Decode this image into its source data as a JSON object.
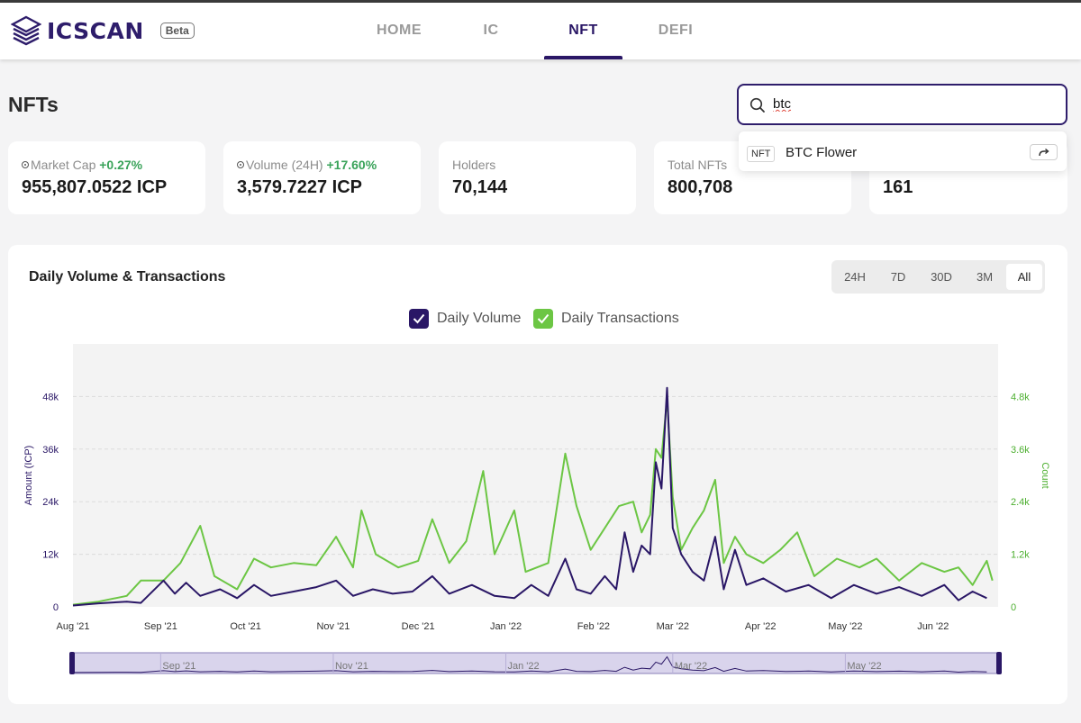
{
  "app": {
    "logo_text": "ICSCAN",
    "badge": "Beta",
    "nav": [
      {
        "label": "HOME",
        "active": false
      },
      {
        "label": "IC",
        "active": false
      },
      {
        "label": "NFT",
        "active": true
      },
      {
        "label": "DEFI",
        "active": false
      }
    ]
  },
  "page": {
    "title": "NFTs"
  },
  "search": {
    "value": "btc",
    "results": [
      {
        "tag": "NFT",
        "name": "BTC Flower"
      }
    ]
  },
  "stats": [
    {
      "label": "Market Cap",
      "change": "+0.27%",
      "value": "955,807.0522 ICP",
      "info": true
    },
    {
      "label": "Volume (24H)",
      "change": "+17.60%",
      "value": "3,579.7227 ICP",
      "info": true
    },
    {
      "label": "Holders",
      "change": "",
      "value": "70,144",
      "info": false
    },
    {
      "label": "Total NFTs",
      "change": "",
      "value": "800,708",
      "info": false
    },
    {
      "label": "",
      "change": "",
      "value": "161",
      "info": false
    }
  ],
  "chart_panel": {
    "title": "Daily Volume & Transactions",
    "ranges": [
      {
        "label": "24H",
        "active": false
      },
      {
        "label": "7D",
        "active": false
      },
      {
        "label": "30D",
        "active": false
      },
      {
        "label": "3M",
        "active": false
      },
      {
        "label": "All",
        "active": true
      }
    ],
    "legend": [
      {
        "label": "Daily Volume",
        "color": "#2a1766"
      },
      {
        "label": "Daily Transactions",
        "color": "#6cc644"
      }
    ]
  },
  "chart_data": {
    "type": "line",
    "x_labels": [
      "Aug '21",
      "Sep '21",
      "Oct '21",
      "Nov '21",
      "Dec '21",
      "Jan '22",
      "Feb '22",
      "Mar '22",
      "Apr '22",
      "May '22",
      "Jun '22"
    ],
    "y_left": {
      "label": "Amount (ICP)",
      "ticks": [
        "0",
        "12k",
        "24k",
        "36k",
        "48k"
      ],
      "max": 60000
    },
    "y_right": {
      "label": "Count",
      "ticks": [
        "0",
        "1.2k",
        "2.4k",
        "3.6k",
        "4.8k"
      ],
      "max": 6000
    },
    "navigator_labels": [
      "Sep '21",
      "Nov '21",
      "Jan '22",
      "Mar '22",
      "May '22"
    ],
    "series": [
      {
        "name": "Daily Volume",
        "axis": "left",
        "color": "#2a1766",
        "points": [
          [
            "2021-08-01",
            300
          ],
          [
            "2021-08-10",
            800
          ],
          [
            "2021-08-20",
            1200
          ],
          [
            "2021-08-25",
            900
          ],
          [
            "2021-09-02",
            6000
          ],
          [
            "2021-09-06",
            3000
          ],
          [
            "2021-09-10",
            5500
          ],
          [
            "2021-09-15",
            2500
          ],
          [
            "2021-09-22",
            4000
          ],
          [
            "2021-09-28",
            2000
          ],
          [
            "2021-10-04",
            5000
          ],
          [
            "2021-10-10",
            2500
          ],
          [
            "2021-10-18",
            3500
          ],
          [
            "2021-10-26",
            4500
          ],
          [
            "2021-11-02",
            6000
          ],
          [
            "2021-11-08",
            2500
          ],
          [
            "2021-11-15",
            4000
          ],
          [
            "2021-11-22",
            3000
          ],
          [
            "2021-11-29",
            3500
          ],
          [
            "2021-12-06",
            7000
          ],
          [
            "2021-12-12",
            3000
          ],
          [
            "2021-12-20",
            5000
          ],
          [
            "2021-12-28",
            2500
          ],
          [
            "2022-01-04",
            2000
          ],
          [
            "2022-01-10",
            5000
          ],
          [
            "2022-01-16",
            2500
          ],
          [
            "2022-01-22",
            11000
          ],
          [
            "2022-01-26",
            4000
          ],
          [
            "2022-01-31",
            3000
          ],
          [
            "2022-02-05",
            7000
          ],
          [
            "2022-02-09",
            4000
          ],
          [
            "2022-02-12",
            17000
          ],
          [
            "2022-02-15",
            8000
          ],
          [
            "2022-02-18",
            14000
          ],
          [
            "2022-02-21",
            12000
          ],
          [
            "2022-02-23",
            33000
          ],
          [
            "2022-02-25",
            27000
          ],
          [
            "2022-02-27",
            50000
          ],
          [
            "2022-03-01",
            18000
          ],
          [
            "2022-03-04",
            12000
          ],
          [
            "2022-03-08",
            8000
          ],
          [
            "2022-03-12",
            6000
          ],
          [
            "2022-03-16",
            16000
          ],
          [
            "2022-03-19",
            4000
          ],
          [
            "2022-03-23",
            13000
          ],
          [
            "2022-03-27",
            5000
          ],
          [
            "2022-04-02",
            6500
          ],
          [
            "2022-04-10",
            3500
          ],
          [
            "2022-04-18",
            5000
          ],
          [
            "2022-04-26",
            2000
          ],
          [
            "2022-05-04",
            5000
          ],
          [
            "2022-05-12",
            3000
          ],
          [
            "2022-05-20",
            4500
          ],
          [
            "2022-05-28",
            2500
          ],
          [
            "2022-06-05",
            5000
          ],
          [
            "2022-06-10",
            1500
          ],
          [
            "2022-06-15",
            3500
          ],
          [
            "2022-06-20",
            2000
          ]
        ]
      },
      {
        "name": "Daily Transactions",
        "axis": "right",
        "color": "#6cc644",
        "points": [
          [
            "2021-08-01",
            50
          ],
          [
            "2021-08-10",
            120
          ],
          [
            "2021-08-20",
            250
          ],
          [
            "2021-08-25",
            600
          ],
          [
            "2021-09-02",
            600
          ],
          [
            "2021-09-08",
            1000
          ],
          [
            "2021-09-15",
            1850
          ],
          [
            "2021-09-20",
            700
          ],
          [
            "2021-09-28",
            400
          ],
          [
            "2021-10-04",
            1100
          ],
          [
            "2021-10-10",
            900
          ],
          [
            "2021-10-18",
            1000
          ],
          [
            "2021-10-26",
            950
          ],
          [
            "2021-11-02",
            1600
          ],
          [
            "2021-11-08",
            900
          ],
          [
            "2021-11-11",
            2200
          ],
          [
            "2021-11-16",
            1200
          ],
          [
            "2021-11-24",
            900
          ],
          [
            "2021-12-01",
            1050
          ],
          [
            "2021-12-06",
            2000
          ],
          [
            "2021-12-12",
            1000
          ],
          [
            "2021-12-18",
            1500
          ],
          [
            "2021-12-24",
            3100
          ],
          [
            "2021-12-28",
            1200
          ],
          [
            "2022-01-04",
            2200
          ],
          [
            "2022-01-08",
            800
          ],
          [
            "2022-01-16",
            1000
          ],
          [
            "2022-01-22",
            3500
          ],
          [
            "2022-01-26",
            2300
          ],
          [
            "2022-01-31",
            1300
          ],
          [
            "2022-02-05",
            1800
          ],
          [
            "2022-02-10",
            2300
          ],
          [
            "2022-02-15",
            2400
          ],
          [
            "2022-02-18",
            1700
          ],
          [
            "2022-02-21",
            2100
          ],
          [
            "2022-02-23",
            3600
          ],
          [
            "2022-02-25",
            3400
          ],
          [
            "2022-02-27",
            4750
          ],
          [
            "2022-03-01",
            2500
          ],
          [
            "2022-03-04",
            1300
          ],
          [
            "2022-03-08",
            1800
          ],
          [
            "2022-03-12",
            2200
          ],
          [
            "2022-03-16",
            2900
          ],
          [
            "2022-03-19",
            1000
          ],
          [
            "2022-03-23",
            1600
          ],
          [
            "2022-03-27",
            1200
          ],
          [
            "2022-04-02",
            1000
          ],
          [
            "2022-04-08",
            1300
          ],
          [
            "2022-04-14",
            1700
          ],
          [
            "2022-04-20",
            700
          ],
          [
            "2022-04-28",
            1100
          ],
          [
            "2022-05-06",
            900
          ],
          [
            "2022-05-12",
            1100
          ],
          [
            "2022-05-20",
            600
          ],
          [
            "2022-05-28",
            1000
          ],
          [
            "2022-06-05",
            800
          ],
          [
            "2022-06-10",
            900
          ],
          [
            "2022-06-15",
            500
          ],
          [
            "2022-06-20",
            1050
          ],
          [
            "2022-06-22",
            600
          ]
        ]
      }
    ]
  }
}
